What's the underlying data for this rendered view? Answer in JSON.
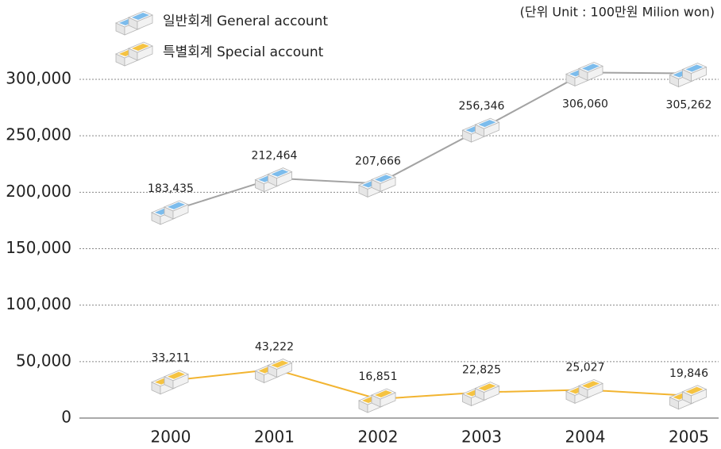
{
  "chart_data": {
    "type": "line",
    "unit_note": "(단위 Unit : 100만원 Milion won)",
    "categories": [
      "2000",
      "2001",
      "2002",
      "2003",
      "2004",
      "2005"
    ],
    "series": [
      {
        "name": "일반회계 General account",
        "color": "#a3a3a3",
        "marker_color": "#7cbcec",
        "values": [
          183435,
          212464,
          207666,
          256346,
          306060,
          305262
        ],
        "value_labels": [
          "183,435",
          "212,464",
          "207,666",
          "256,346",
          "306,060",
          "305,262"
        ]
      },
      {
        "name": "특별회계 Special account",
        "color": "#f2b430",
        "marker_color": "#f5c342",
        "values": [
          33211,
          43222,
          16851,
          22825,
          25027,
          19846
        ],
        "value_labels": [
          "33,211",
          "43,222",
          "16,851",
          "22,825",
          "25,027",
          "19,846"
        ]
      }
    ],
    "ylim": [
      0,
      300000
    ],
    "yticks": [
      0,
      {
        "value": 50000,
        "label": "50,000"
      },
      {
        "value": 100000,
        "label": "100,000"
      },
      {
        "value": 150000,
        "label": "150,000"
      },
      {
        "value": 200000,
        "label": "200,000"
      },
      {
        "value": 250000,
        "label": "250,000"
      },
      {
        "value": 300000,
        "label": "300,000"
      }
    ],
    "grid": true
  }
}
